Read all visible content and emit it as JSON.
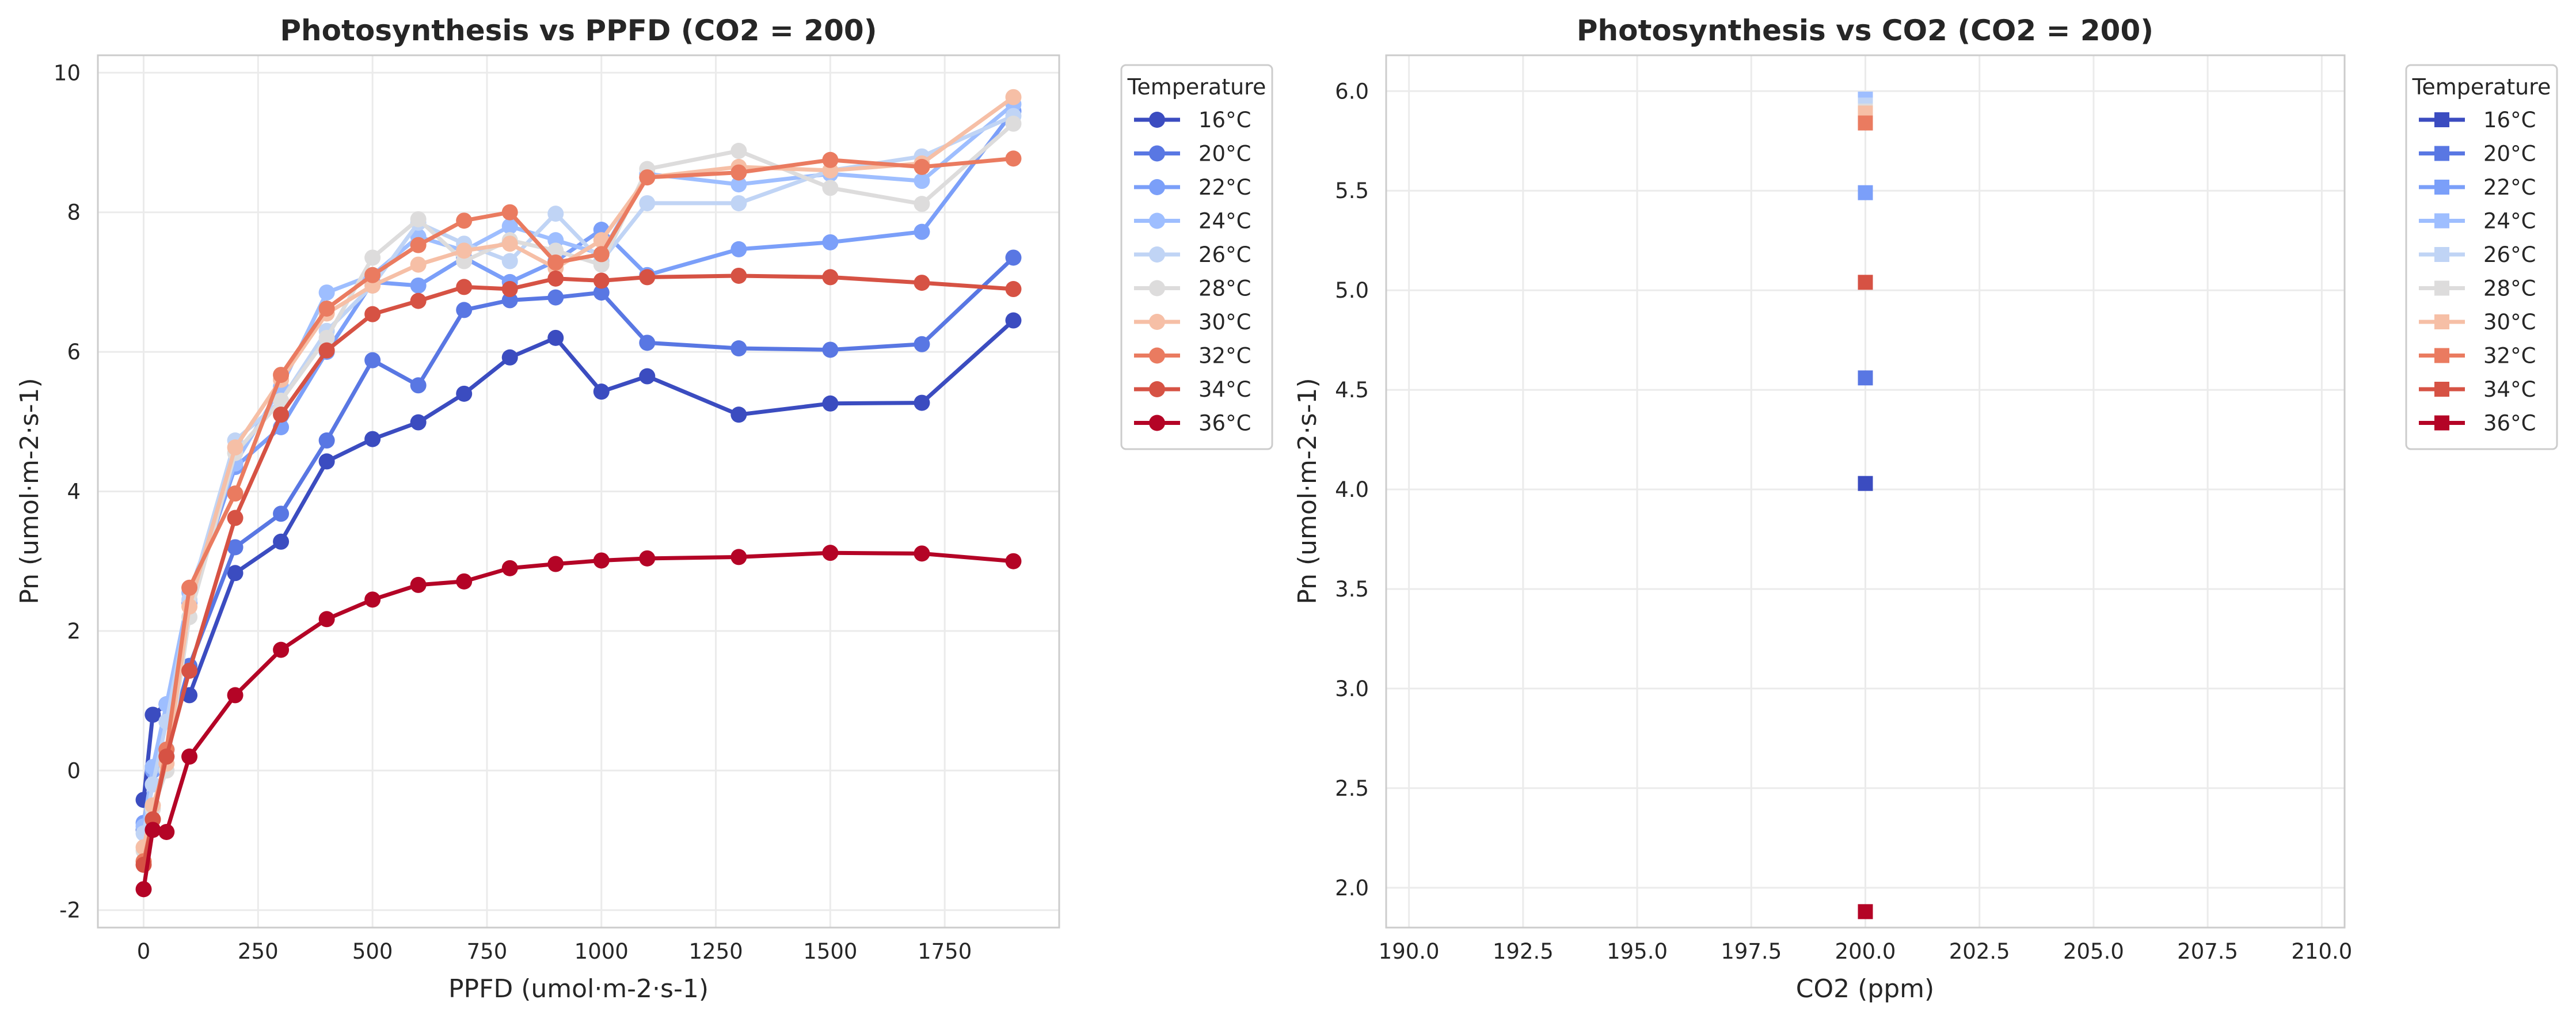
{
  "chart_data": [
    {
      "type": "line",
      "title": "Photosynthesis vs PPFD (CO2 = 200)",
      "xlabel": "PPFD (umol·m-2·s-1)",
      "ylabel": "Pn (umol·m-2·s-1)",
      "xlim": [
        -100,
        2000
      ],
      "ylim": [
        -2.25,
        10.25
      ],
      "xticks": [
        0,
        250,
        500,
        750,
        1000,
        1250,
        1500,
        1750
      ],
      "xtick_labels": [
        "0",
        "250",
        "500",
        "750",
        "1000",
        "1250",
        "1500",
        "1750"
      ],
      "yticks": [
        -2,
        0,
        2,
        4,
        6,
        8,
        10
      ],
      "ytick_labels": [
        "-2",
        "0",
        "2",
        "4",
        "6",
        "8",
        "10"
      ],
      "grid": true,
      "legend": {
        "title": "Temperature",
        "placement": "outside-right"
      },
      "x": [
        0,
        20,
        50,
        100,
        200,
        300,
        400,
        500,
        600,
        700,
        800,
        900,
        1000,
        1100,
        1300,
        1500,
        1700,
        1900
      ],
      "series": [
        {
          "name": "16°C",
          "color": "#3b4cc0",
          "values": [
            -0.42,
            0.8,
            0.95,
            1.08,
            2.83,
            3.28,
            4.43,
            4.75,
            4.99,
            5.4,
            5.92,
            6.2,
            5.43,
            5.65,
            5.1,
            5.26,
            5.27,
            6.45
          ]
        },
        {
          "name": "20°C",
          "color": "#5977e3",
          "values": [
            -0.85,
            0.05,
            0.3,
            1.5,
            3.2,
            3.68,
            4.73,
            5.88,
            5.52,
            6.6,
            6.74,
            6.78,
            6.85,
            6.13,
            6.05,
            6.03,
            6.11,
            7.35
          ]
        },
        {
          "name": "22°C",
          "color": "#7b9ff9",
          "values": [
            -0.75,
            0.0,
            0.2,
            2.4,
            4.35,
            4.92,
            6.0,
            7.0,
            6.95,
            7.35,
            7.0,
            7.3,
            7.75,
            7.1,
            7.47,
            7.57,
            7.72,
            9.45
          ]
        },
        {
          "name": "24°C",
          "color": "#9ebeff",
          "values": [
            -0.8,
            0.05,
            0.95,
            2.55,
            4.4,
            5.5,
            6.85,
            7.1,
            7.65,
            7.45,
            7.8,
            7.6,
            7.4,
            8.55,
            8.4,
            8.55,
            8.45,
            9.55
          ]
        },
        {
          "name": "26°C",
          "color": "#c0d4f5",
          "values": [
            -0.9,
            -0.2,
            0.7,
            2.45,
            4.73,
            5.3,
            6.3,
            6.95,
            7.85,
            7.55,
            7.3,
            7.98,
            7.3,
            8.13,
            8.13,
            8.6,
            8.8,
            9.38
          ]
        },
        {
          "name": "28°C",
          "color": "#dddcdc",
          "values": [
            -1.15,
            -0.55,
            0.0,
            2.2,
            4.55,
            5.3,
            6.2,
            7.35,
            7.9,
            7.3,
            7.6,
            7.45,
            7.25,
            8.62,
            8.88,
            8.35,
            8.12,
            9.27
          ]
        },
        {
          "name": "30°C",
          "color": "#f6bfa6",
          "values": [
            -1.1,
            -0.5,
            0.1,
            2.35,
            4.63,
            5.6,
            6.55,
            6.95,
            7.25,
            7.45,
            7.55,
            7.2,
            7.6,
            8.5,
            8.65,
            8.6,
            8.7,
            9.65
          ]
        },
        {
          "name": "32°C",
          "color": "#ea7b60",
          "values": [
            -1.3,
            -0.7,
            0.3,
            2.62,
            3.97,
            5.67,
            6.62,
            7.1,
            7.53,
            7.88,
            8.0,
            7.28,
            7.4,
            8.5,
            8.57,
            8.75,
            8.65,
            8.77
          ]
        },
        {
          "name": "34°C",
          "color": "#d65244",
          "values": [
            -1.35,
            -0.7,
            0.2,
            1.43,
            3.62,
            5.1,
            6.02,
            6.54,
            6.73,
            6.93,
            6.9,
            7.05,
            7.02,
            7.07,
            7.09,
            7.07,
            6.99,
            6.9
          ]
        },
        {
          "name": "36°C",
          "color": "#b40426",
          "values": [
            -1.7,
            -0.85,
            -0.88,
            0.2,
            1.08,
            1.73,
            2.17,
            2.45,
            2.66,
            2.71,
            2.9,
            2.96,
            3.01,
            3.04,
            3.06,
            3.12,
            3.11,
            3.0
          ]
        }
      ]
    },
    {
      "type": "scatter",
      "title": "Photosynthesis vs CO2 (CO2 = 200)",
      "xlabel": "CO2 (ppm)",
      "ylabel": "Pn (umol·m-2·s-1)",
      "xlim": [
        189.5,
        210.5
      ],
      "ylim": [
        1.8,
        6.18
      ],
      "xticks": [
        190,
        192.5,
        195,
        197.5,
        200,
        202.5,
        205,
        207.5,
        210
      ],
      "xtick_labels": [
        "190.0",
        "192.5",
        "195.0",
        "197.5",
        "200.0",
        "202.5",
        "205.0",
        "207.5",
        "210.0"
      ],
      "yticks": [
        2.0,
        2.5,
        3.0,
        3.5,
        4.0,
        4.5,
        5.0,
        5.5,
        6.0
      ],
      "ytick_labels": [
        "2.0",
        "2.5",
        "3.0",
        "3.5",
        "4.0",
        "4.5",
        "5.0",
        "5.5",
        "6.0"
      ],
      "grid": true,
      "legend": {
        "title": "Temperature",
        "placement": "outside-right"
      },
      "series": [
        {
          "name": "16°C",
          "color": "#3b4cc0",
          "x": [
            200
          ],
          "values": [
            4.03
          ]
        },
        {
          "name": "20°C",
          "color": "#5977e3",
          "x": [
            200
          ],
          "values": [
            4.56
          ]
        },
        {
          "name": "22°C",
          "color": "#7b9ff9",
          "x": [
            200
          ],
          "values": [
            5.49
          ]
        },
        {
          "name": "24°C",
          "color": "#9ebeff",
          "x": [
            200
          ],
          "values": [
            5.96
          ]
        },
        {
          "name": "26°C",
          "color": "#c0d4f5",
          "x": [
            200
          ],
          "values": [
            5.93
          ]
        },
        {
          "name": "28°C",
          "color": "#dddcdc",
          "x": [
            200
          ],
          "values": [
            5.9
          ]
        },
        {
          "name": "30°C",
          "color": "#f6bfa6",
          "x": [
            200
          ],
          "values": [
            5.89
          ]
        },
        {
          "name": "32°C",
          "color": "#ea7b60",
          "x": [
            200
          ],
          "values": [
            5.84
          ]
        },
        {
          "name": "34°C",
          "color": "#d65244",
          "x": [
            200
          ],
          "values": [
            5.04
          ]
        },
        {
          "name": "36°C",
          "color": "#b40426",
          "x": [
            200
          ],
          "values": [
            1.88
          ]
        }
      ]
    }
  ]
}
